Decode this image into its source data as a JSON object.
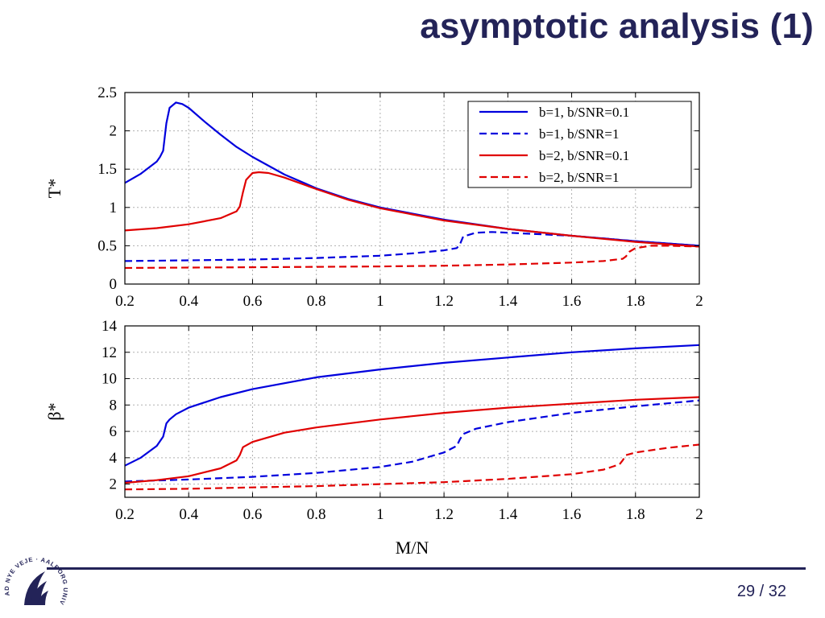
{
  "slide": {
    "title": "asymptotic analysis (1)",
    "page": "29 / 32",
    "logo_text": "AD NYE VEJE · AALBORG UNIVERSITET"
  },
  "colors": {
    "blue": "#0000dd",
    "red": "#e00000",
    "title": "#232358",
    "grid": "#b0b0b0"
  },
  "chart_data": [
    {
      "type": "line",
      "ylabel": "T*",
      "xlabel": "",
      "xlim": [
        0.2,
        2
      ],
      "ylim": [
        0,
        2.5
      ],
      "xticks": [
        0.2,
        0.4,
        0.6,
        0.8,
        1,
        1.2,
        1.4,
        1.6,
        1.8,
        2
      ],
      "yticks": [
        0,
        0.5,
        1,
        1.5,
        2,
        2.5
      ],
      "ytick_labels": [
        "0",
        "0.5",
        "1",
        "1.5",
        "2",
        "2.5"
      ],
      "grid": true,
      "legend_position": "top-right",
      "series": [
        {
          "name": "b=1, b/SNR=0.1",
          "color": "#0000dd",
          "dash": "solid",
          "x": [
            0.2,
            0.25,
            0.3,
            0.31,
            0.32,
            0.33,
            0.34,
            0.36,
            0.38,
            0.4,
            0.45,
            0.5,
            0.55,
            0.6,
            0.7,
            0.8,
            0.9,
            1.0,
            1.2,
            1.4,
            1.6,
            1.8,
            2.0
          ],
          "y": [
            1.32,
            1.44,
            1.6,
            1.66,
            1.74,
            2.1,
            2.3,
            2.37,
            2.35,
            2.3,
            2.12,
            1.95,
            1.79,
            1.66,
            1.43,
            1.25,
            1.11,
            1.0,
            0.84,
            0.72,
            0.63,
            0.56,
            0.5
          ]
        },
        {
          "name": "b=1, b/SNR=1",
          "color": "#0000dd",
          "dash": "dashed",
          "x": [
            0.2,
            0.4,
            0.6,
            0.8,
            1.0,
            1.1,
            1.2,
            1.24,
            1.25,
            1.26,
            1.3,
            1.35,
            1.4,
            1.6,
            1.8,
            2.0
          ],
          "y": [
            0.3,
            0.31,
            0.32,
            0.34,
            0.37,
            0.4,
            0.44,
            0.47,
            0.52,
            0.62,
            0.67,
            0.68,
            0.67,
            0.63,
            0.56,
            0.5
          ]
        },
        {
          "name": "b=2, b/SNR=0.1",
          "color": "#e00000",
          "dash": "solid",
          "x": [
            0.2,
            0.3,
            0.4,
            0.5,
            0.55,
            0.56,
            0.57,
            0.58,
            0.6,
            0.62,
            0.65,
            0.7,
            0.8,
            0.9,
            1.0,
            1.2,
            1.4,
            1.6,
            1.8,
            2.0
          ],
          "y": [
            0.7,
            0.73,
            0.78,
            0.86,
            0.95,
            1.01,
            1.2,
            1.36,
            1.45,
            1.46,
            1.45,
            1.39,
            1.24,
            1.1,
            0.99,
            0.83,
            0.72,
            0.63,
            0.55,
            0.49
          ]
        },
        {
          "name": "b=2, b/SNR=1",
          "color": "#e00000",
          "dash": "dashed",
          "x": [
            0.2,
            0.4,
            0.6,
            0.8,
            1.0,
            1.2,
            1.4,
            1.6,
            1.7,
            1.76,
            1.77,
            1.78,
            1.8,
            1.85,
            1.9,
            2.0
          ],
          "y": [
            0.21,
            0.215,
            0.22,
            0.225,
            0.23,
            0.24,
            0.255,
            0.28,
            0.3,
            0.33,
            0.36,
            0.42,
            0.47,
            0.5,
            0.5,
            0.49
          ]
        }
      ]
    },
    {
      "type": "line",
      "ylabel": "β*",
      "xlabel": "M/N",
      "xlim": [
        0.2,
        2
      ],
      "ylim": [
        1,
        14
      ],
      "xticks": [
        0.2,
        0.4,
        0.6,
        0.8,
        1,
        1.2,
        1.4,
        1.6,
        1.8,
        2
      ],
      "yticks": [
        2,
        4,
        6,
        8,
        10,
        12,
        14
      ],
      "ytick_labels": [
        "2",
        "4",
        "6",
        "8",
        "10",
        "12",
        "14"
      ],
      "grid": true,
      "series": [
        {
          "name": "b=1, b/SNR=0.1",
          "color": "#0000dd",
          "dash": "solid",
          "x": [
            0.2,
            0.25,
            0.3,
            0.32,
            0.33,
            0.34,
            0.36,
            0.4,
            0.5,
            0.6,
            0.8,
            1.0,
            1.2,
            1.4,
            1.6,
            1.8,
            2.0
          ],
          "y": [
            3.4,
            4.0,
            4.9,
            5.6,
            6.6,
            6.9,
            7.3,
            7.8,
            8.6,
            9.2,
            10.1,
            10.7,
            11.2,
            11.6,
            12.0,
            12.3,
            12.55
          ]
        },
        {
          "name": "b=1, b/SNR=1",
          "color": "#0000dd",
          "dash": "dashed",
          "x": [
            0.2,
            0.4,
            0.6,
            0.8,
            1.0,
            1.1,
            1.2,
            1.24,
            1.25,
            1.26,
            1.3,
            1.4,
            1.6,
            1.8,
            2.0
          ],
          "y": [
            2.2,
            2.35,
            2.55,
            2.85,
            3.3,
            3.7,
            4.4,
            4.9,
            5.4,
            5.8,
            6.2,
            6.7,
            7.4,
            7.9,
            8.35
          ]
        },
        {
          "name": "b=2, b/SNR=0.1",
          "color": "#e00000",
          "dash": "solid",
          "x": [
            0.2,
            0.3,
            0.4,
            0.5,
            0.55,
            0.56,
            0.57,
            0.6,
            0.7,
            0.8,
            1.0,
            1.2,
            1.4,
            1.6,
            1.8,
            2.0
          ],
          "y": [
            2.1,
            2.3,
            2.6,
            3.2,
            3.8,
            4.2,
            4.8,
            5.2,
            5.9,
            6.3,
            6.9,
            7.4,
            7.8,
            8.1,
            8.4,
            8.6
          ]
        },
        {
          "name": "b=2, b/SNR=1",
          "color": "#e00000",
          "dash": "dashed",
          "x": [
            0.2,
            0.4,
            0.6,
            0.8,
            1.0,
            1.2,
            1.4,
            1.6,
            1.7,
            1.75,
            1.76,
            1.77,
            1.8,
            1.9,
            2.0
          ],
          "y": [
            1.6,
            1.65,
            1.75,
            1.85,
            2.0,
            2.15,
            2.4,
            2.75,
            3.1,
            3.5,
            3.8,
            4.2,
            4.4,
            4.75,
            5.0
          ]
        }
      ]
    }
  ]
}
